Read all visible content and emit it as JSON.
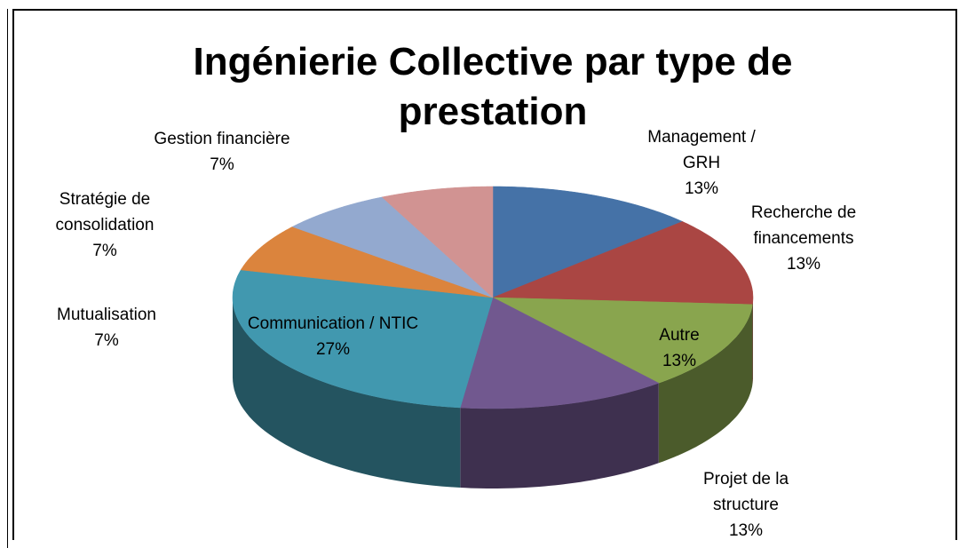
{
  "chart_data": {
    "type": "pie3d",
    "title": "Ingénierie Collective par type de prestation",
    "categories": [
      "Management / GRH",
      "Recherche de financements",
      "Autre",
      "Projet de la structure",
      "Communication / NTIC",
      "Mutualisation",
      "Stratégie de consolidation",
      "Gestion financière"
    ],
    "values": [
      13,
      13,
      13,
      13,
      27,
      7,
      7,
      7
    ],
    "value_labels": [
      "13%",
      "13%",
      "13%",
      "13%",
      "27%",
      "7%",
      "7%",
      "7%"
    ],
    "colors": [
      "#4572a7",
      "#aa4643",
      "#89a54e",
      "#71588f",
      "#4198af",
      "#db843d",
      "#93a9cf",
      "#d19392"
    ]
  }
}
